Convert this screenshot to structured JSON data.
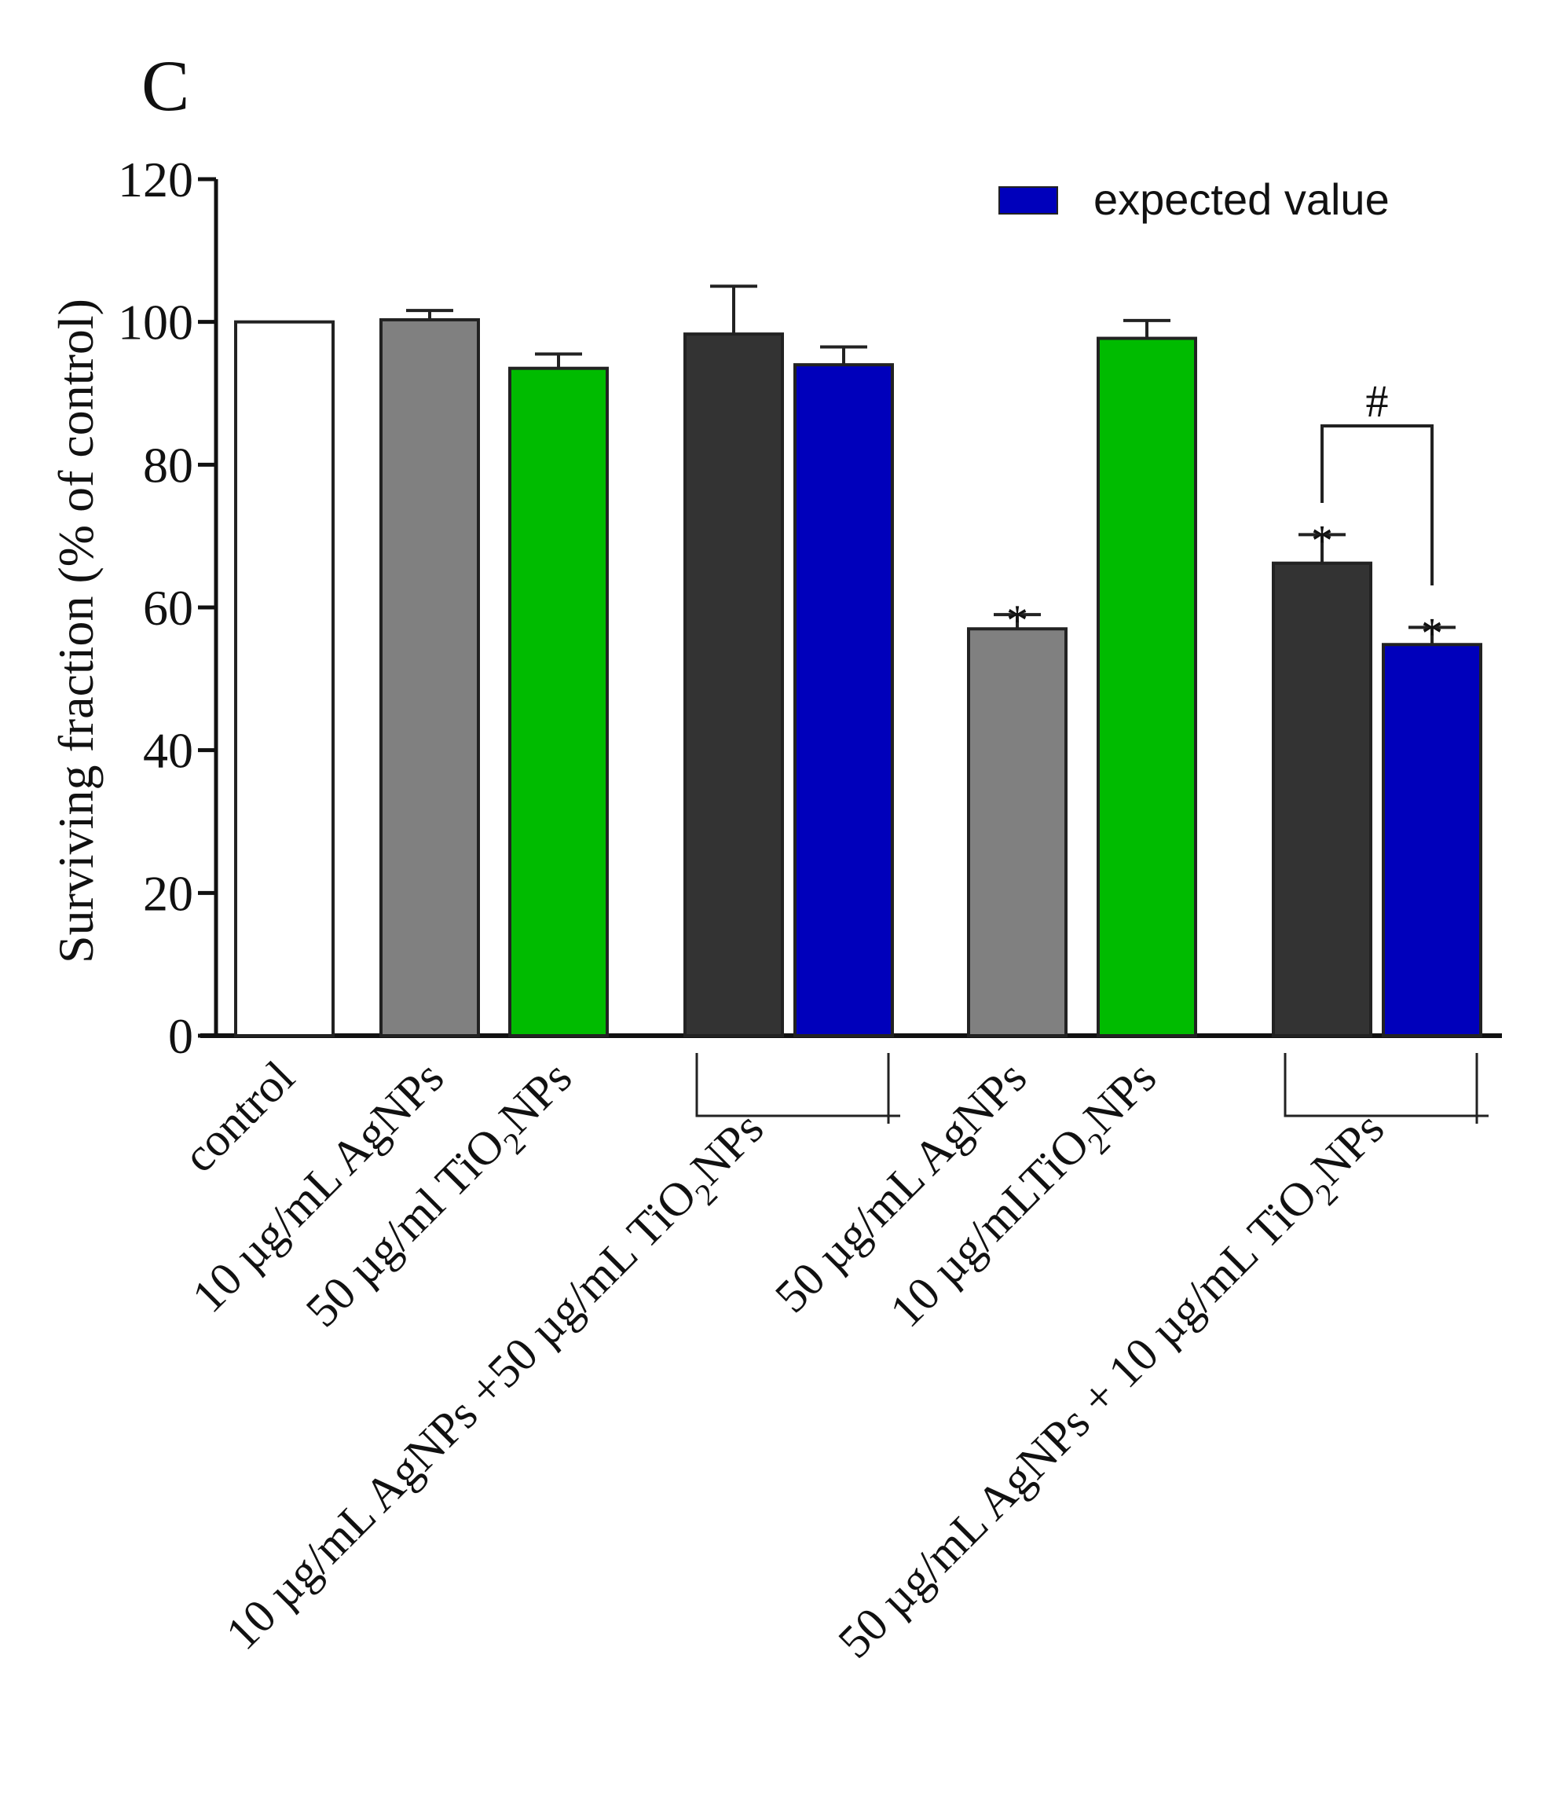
{
  "panel_label": "C",
  "chart_data": {
    "type": "bar",
    "ylabel": "Surviving fraction (% of control)",
    "xlabel": "",
    "ylim": [
      0,
      120
    ],
    "yticks": [
      0,
      20,
      40,
      60,
      80,
      100,
      120
    ],
    "grid": false,
    "legend": {
      "position": "top-right",
      "entries": [
        {
          "label": "expected value",
          "color": "#0000BB"
        }
      ]
    },
    "bars": [
      {
        "value": 100,
        "error": 0,
        "color": "#FFFFFF",
        "star": ""
      },
      {
        "value": 100.3,
        "error": 1.3,
        "color": "#808080",
        "star": ""
      },
      {
        "value": 93.5,
        "error": 2.0,
        "color": "#00BB00",
        "star": ""
      },
      {
        "value": 98.3,
        "error": 6.7,
        "color": "#333333",
        "star": ""
      },
      {
        "value": 94.0,
        "error": 2.5,
        "color": "#0000BB",
        "star": ""
      },
      {
        "value": 57.0,
        "error": 2.0,
        "color": "#808080",
        "star": "*"
      },
      {
        "value": 97.7,
        "error": 2.5,
        "color": "#00BB00",
        "star": ""
      },
      {
        "value": 66.2,
        "error": 4.0,
        "color": "#333333",
        "star": "*"
      },
      {
        "value": 54.8,
        "error": 2.4,
        "color": "#0000BB",
        "star": "*"
      }
    ],
    "category_labels": [
      {
        "parts": [
          {
            "t": "control"
          }
        ]
      },
      {
        "parts": [
          {
            "t": "10 µg/mL AgNPs"
          }
        ]
      },
      {
        "parts": [
          {
            "t": "50 µg/ml TiO"
          },
          {
            "t": "2",
            "sub": true
          },
          {
            "t": "NPs"
          }
        ]
      },
      {
        "parts": [
          {
            "t": "10 µg/mL AgNPs +50 µg/mL TiO"
          },
          {
            "t": "2",
            "sub": true
          },
          {
            "t": "NPs"
          }
        ]
      },
      {
        "parts": [
          {
            "t": "50 µg/mL AgNPs"
          }
        ]
      },
      {
        "parts": [
          {
            "t": "10 µg/mLTiO"
          },
          {
            "t": "2",
            "sub": true
          },
          {
            "t": "NPs"
          }
        ]
      },
      {
        "parts": [
          {
            "t": "50 µg/mL AgNPs + 10 µg/mL TiO"
          },
          {
            "t": "2",
            "sub": true
          },
          {
            "t": "NPs"
          }
        ]
      }
    ],
    "significance_bracket": {
      "from_bar": 7,
      "to_bar": 8,
      "label": "#"
    }
  }
}
